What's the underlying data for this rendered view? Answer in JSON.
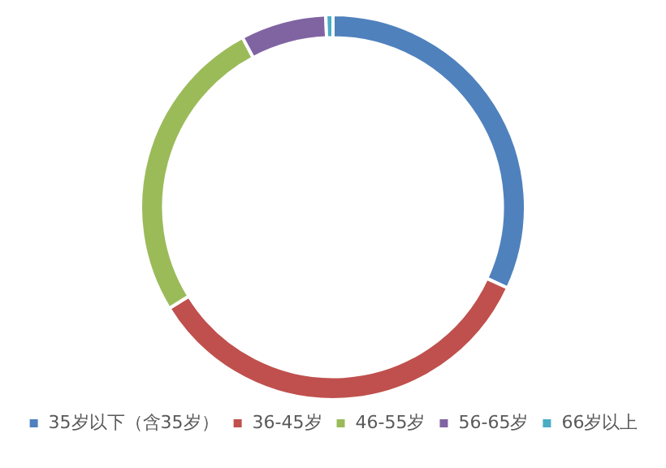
{
  "chart_data": {
    "type": "donut",
    "categories": [
      "35岁以下（含35岁）",
      "36-45岁",
      "46-55岁",
      "56-65岁",
      "66岁以上"
    ],
    "values": [
      31.9,
      34.3,
      26,
      7.2,
      0.6
    ],
    "colors": [
      "#4f81bd",
      "#c0504d",
      "#9bbb59",
      "#8064a2",
      "#4bacc6"
    ],
    "legend": "bottom"
  }
}
